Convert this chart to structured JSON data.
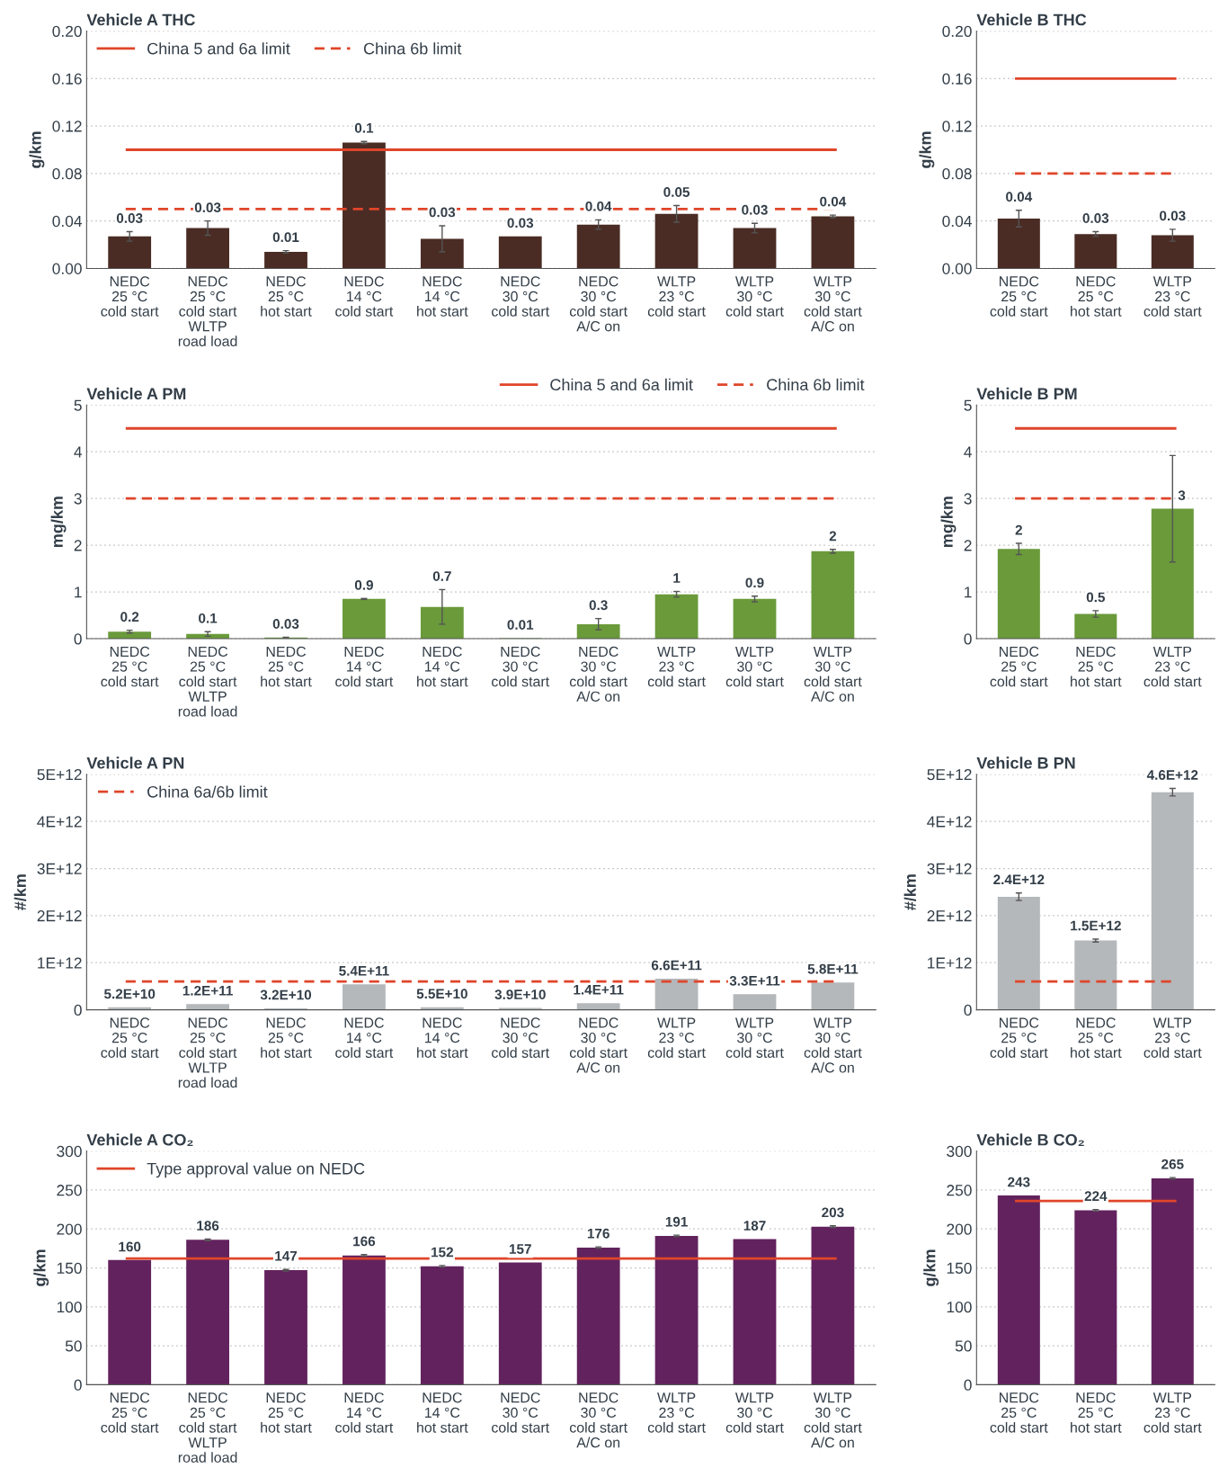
{
  "chart_data": [
    {
      "type": "bar",
      "title": "Vehicle A THC",
      "ylabel": "g/km",
      "categories": [
        "NEDC\n25 °C\ncold start",
        "NEDC\n25 °C\ncold start\nWLTP\nroad load",
        "NEDC\n25 °C\nhot start",
        "NEDC\n14 °C\ncold start",
        "NEDC\n14 °C\nhot start",
        "NEDC\n30 °C\ncold start",
        "NEDC\n30 °C\ncold start\nA/C on",
        "WLTP\n23 °C\ncold start",
        "WLTP\n30 °C\ncold start",
        "WLTP\n30 °C\ncold start\nA/C on"
      ],
      "color": "#4a2c25",
      "values": [
        0.027,
        0.034,
        0.014,
        0.106,
        0.025,
        0.027,
        0.037,
        0.046,
        0.034,
        0.044
      ],
      "errors": [
        0.004,
        0.006,
        0.001,
        0.001,
        0.011,
        null,
        0.004,
        0.007,
        0.004,
        0.001
      ],
      "value_labels": [
        "0.03",
        "0.03",
        "0.01",
        "0.1",
        "0.03",
        "0.03",
        "0.04",
        "0.05",
        "0.03",
        "0.04"
      ],
      "ylim": [
        0,
        0.2
      ],
      "yticks": [
        {
          "value": 0,
          "label": "0.00"
        },
        {
          "value": 0.04,
          "label": "0.04"
        },
        {
          "value": 0.08,
          "label": "0.08"
        },
        {
          "value": 0.12,
          "label": "0.12"
        },
        {
          "value": 0.16,
          "label": "0.16"
        },
        {
          "value": 0.2,
          "label": "0.20"
        }
      ],
      "ref_lines": [
        {
          "axis": "y",
          "value": 0.1,
          "label": "China 5 and 6a limit",
          "color": "#e0452a",
          "line_style": "solid"
        },
        {
          "axis": "y",
          "value": 0.05,
          "label": "China 6b limit",
          "color": "#e0452a",
          "line_style": "dashed"
        }
      ],
      "grid": "y",
      "legend": "top left"
    },
    {
      "type": "bar",
      "title": "Vehicle B THC",
      "ylabel": "g/km",
      "categories": [
        "NEDC\n25 °C\ncold start",
        "NEDC\n25 °C\nhot start",
        "WLTP\n23 °C\ncold start"
      ],
      "color": "#4a2c25",
      "values": [
        0.042,
        0.029,
        0.028
      ],
      "errors": [
        0.007,
        0.002,
        0.005
      ],
      "value_labels": [
        "0.04",
        "0.03",
        "0.03"
      ],
      "ylim": [
        0,
        0.2
      ],
      "yticks": [
        {
          "value": 0,
          "label": "0.00"
        },
        {
          "value": 0.04,
          "label": "0.04"
        },
        {
          "value": 0.08,
          "label": "0.08"
        },
        {
          "value": 0.12,
          "label": "0.12"
        },
        {
          "value": 0.16,
          "label": "0.16"
        },
        {
          "value": 0.2,
          "label": "0.20"
        }
      ],
      "ref_lines": [
        {
          "axis": "y",
          "value": 0.16,
          "color": "#e0452a",
          "line_style": "solid"
        },
        {
          "axis": "y",
          "value": 0.08,
          "color": "#e0452a",
          "line_style": "dashed"
        }
      ],
      "grid": "y"
    },
    {
      "type": "bar",
      "title": "Vehicle A PM",
      "ylabel": "mg/km",
      "categories": [
        "NEDC\n25 °C\ncold start",
        "NEDC\n25 °C\ncold start\nWLTP\nroad load",
        "NEDC\n25 °C\nhot start",
        "NEDC\n14 °C\ncold start",
        "NEDC\n14 °C\nhot start",
        "NEDC\n30 °C\ncold start",
        "NEDC\n30 °C\ncold start\nA/C on",
        "WLTP\n23 °C\ncold start",
        "WLTP\n30 °C\ncold start",
        "WLTP\n30 °C\ncold start\nA/C on"
      ],
      "color": "#6a9a3a",
      "values": [
        0.15,
        0.1,
        0.025,
        0.85,
        0.68,
        0.01,
        0.31,
        0.95,
        0.85,
        1.87
      ],
      "errors": [
        0.03,
        0.05,
        0.005,
        0.01,
        0.37,
        null,
        0.12,
        0.06,
        0.06,
        0.04
      ],
      "value_labels": [
        "0.2",
        "0.1",
        "0.03",
        "0.9",
        "0.7",
        "0.01",
        "0.3",
        "1",
        "0.9",
        "2"
      ],
      "ylim": [
        0,
        5
      ],
      "yticks": [
        0,
        1,
        2,
        3,
        4,
        5
      ],
      "ref_lines": [
        {
          "axis": "y",
          "value": 4.5,
          "label": "China 5 and 6a limit",
          "color": "#e0452a",
          "line_style": "solid"
        },
        {
          "axis": "y",
          "value": 3.0,
          "label": "China 6b limit",
          "color": "#e0452a",
          "line_style": "dashed"
        }
      ],
      "grid": "y",
      "legend": "top right"
    },
    {
      "type": "bar",
      "title": "Vehicle B PM",
      "ylabel": "mg/km",
      "categories": [
        "NEDC\n25 °C\ncold start",
        "NEDC\n25 °C\nhot start",
        "WLTP\n23 °C\ncold start"
      ],
      "color": "#6a9a3a",
      "values": [
        1.92,
        0.53,
        2.78
      ],
      "errors": [
        0.12,
        0.07,
        1.14
      ],
      "value_labels": [
        "2",
        "0.5",
        "3"
      ],
      "ylim": [
        0,
        5
      ],
      "yticks": [
        0,
        1,
        2,
        3,
        4,
        5
      ],
      "ref_lines": [
        {
          "axis": "y",
          "value": 4.5,
          "color": "#e0452a",
          "line_style": "solid"
        },
        {
          "axis": "y",
          "value": 3.0,
          "color": "#e0452a",
          "line_style": "dashed"
        }
      ],
      "grid": "y"
    },
    {
      "type": "bar",
      "title": "Vehicle A PN",
      "ylabel": "#/km",
      "categories": [
        "NEDC\n25 °C\ncold start",
        "NEDC\n25 °C\ncold start\nWLTP\nroad load",
        "NEDC\n25 °C\nhot start",
        "NEDC\n14 °C\ncold start",
        "NEDC\n14 °C\nhot start",
        "NEDC\n30 °C\ncold start",
        "NEDC\n30 °C\ncold start\nA/C on",
        "WLTP\n23 °C\ncold start",
        "WLTP\n30 °C\ncold start",
        "WLTP\n30 °C\ncold start\nA/C on"
      ],
      "color": "#b4b8bb",
      "values": [
        52000000000.0,
        120000000000.0,
        32000000000.0,
        540000000000.0,
        55000000000.0,
        39000000000.0,
        140000000000.0,
        660000000000.0,
        330000000000.0,
        580000000000.0
      ],
      "value_labels": [
        "5.2E+10",
        "1.2E+11",
        "3.2E+10",
        "5.4E+11",
        "5.5E+10",
        "3.9E+10",
        "1.4E+11",
        "6.6E+11",
        "3.3E+11",
        "5.8E+11"
      ],
      "ylim": [
        0,
        5000000000000.0
      ],
      "yticks": [
        0,
        {
          "value": 1000000000000.0,
          "label": "1E+12"
        },
        {
          "value": 2000000000000.0,
          "label": "2E+12"
        },
        {
          "value": 3000000000000.0,
          "label": "3E+12"
        },
        {
          "value": 4000000000000.0,
          "label": "4E+12"
        },
        {
          "value": 5000000000000.0,
          "label": "5E+12"
        }
      ],
      "ref_lines": [
        {
          "axis": "y",
          "value": 600000000000.0,
          "label": "China 6a/6b limit",
          "color": "#e0452a",
          "line_style": "dashed"
        }
      ],
      "grid": "y",
      "legend": "top left"
    },
    {
      "type": "bar",
      "title": "Vehicle B PN",
      "ylabel": "#/km",
      "categories": [
        "NEDC\n25 °C\ncold start",
        "NEDC\n25 °C\nhot start",
        "WLTP\n23 °C\ncold start"
      ],
      "color": "#b4b8bb",
      "values": [
        2400000000000.0,
        1470000000000.0,
        4620000000000.0
      ],
      "errors": [
        80000000000.0,
        30000000000.0,
        80000000000.0
      ],
      "value_labels": [
        "2.4E+12",
        "1.5E+12",
        "4.6E+12"
      ],
      "ylim": [
        0,
        5000000000000.0
      ],
      "yticks": [
        0,
        {
          "value": 1000000000000.0,
          "label": "1E+12"
        },
        {
          "value": 2000000000000.0,
          "label": "2E+12"
        },
        {
          "value": 3000000000000.0,
          "label": "3E+12"
        },
        {
          "value": 4000000000000.0,
          "label": "4E+12"
        },
        {
          "value": 5000000000000.0,
          "label": "5E+12"
        }
      ],
      "ref_lines": [
        {
          "axis": "y",
          "value": 600000000000.0,
          "color": "#e0452a",
          "line_style": "dashed"
        }
      ],
      "grid": "y"
    },
    {
      "type": "bar",
      "title": "Vehicle A CO₂",
      "ylabel": "g/km",
      "categories": [
        "NEDC\n25 °C\ncold start",
        "NEDC\n25 °C\ncold start\nWLTP\nroad load",
        "NEDC\n25 °C\nhot start",
        "NEDC\n14 °C\ncold start",
        "NEDC\n14 °C\nhot start",
        "NEDC\n30 °C\ncold start",
        "NEDC\n30 °C\ncold start\nA/C on",
        "WLTP\n23 °C\ncold start",
        "WLTP\n30 °C\ncold start",
        "WLTP\n30 °C\ncold start\nA/C on"
      ],
      "color": "#62225e",
      "values": [
        160,
        186,
        147,
        166,
        152,
        157,
        176,
        191,
        187,
        203
      ],
      "errors": [
        null,
        1,
        1,
        1,
        1,
        null,
        1,
        1,
        null,
        1
      ],
      "value_labels": [
        "160",
        "186",
        "147",
        "166",
        "152",
        "157",
        "176",
        "191",
        "187",
        "203"
      ],
      "ylim": [
        0,
        300
      ],
      "yticks": [
        0,
        50,
        100,
        150,
        200,
        250,
        300
      ],
      "ref_lines": [
        {
          "axis": "y",
          "value": 162,
          "label": "Type approval value on NEDC",
          "color": "#e0452a",
          "line_style": "solid"
        }
      ],
      "grid": "y",
      "legend": "top left"
    },
    {
      "type": "bar",
      "title": "Vehicle B CO₂",
      "ylabel": "g/km",
      "categories": [
        "NEDC\n25 °C\ncold start",
        "NEDC\n25 °C\nhot start",
        "WLTP\n23 °C\ncold start"
      ],
      "color": "#62225e",
      "values": [
        243,
        224,
        265
      ],
      "errors": [
        null,
        1,
        1
      ],
      "value_labels": [
        "243",
        "224",
        "265"
      ],
      "ylim": [
        0,
        300
      ],
      "yticks": [
        0,
        50,
        100,
        150,
        200,
        250,
        300
      ],
      "ref_lines": [
        {
          "axis": "y",
          "value": 236,
          "color": "#e0452a",
          "line_style": "solid"
        }
      ],
      "grid": "y"
    }
  ]
}
